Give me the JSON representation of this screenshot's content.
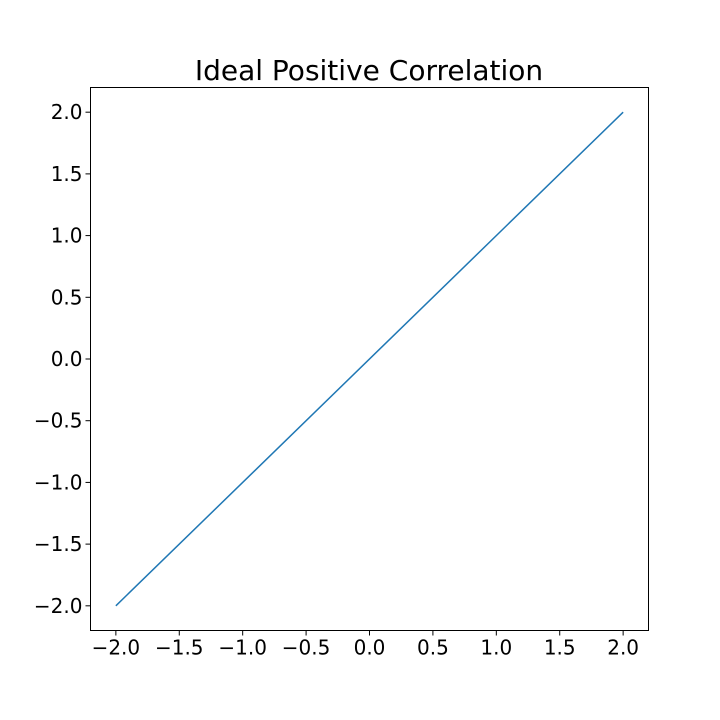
{
  "chart_data": {
    "type": "line",
    "title": "Ideal Positive Correlation",
    "xlabel": "",
    "ylabel": "",
    "xlim": [
      -2.2,
      2.2
    ],
    "ylim": [
      -2.2,
      2.2
    ],
    "x_ticks": [
      -2.0,
      -1.5,
      -1.0,
      -0.5,
      0.0,
      0.5,
      1.0,
      1.5,
      2.0
    ],
    "y_ticks": [
      -2.0,
      -1.5,
      -1.0,
      -0.5,
      0.0,
      0.5,
      1.0,
      1.5,
      2.0
    ],
    "x_tick_labels": [
      "−2.0",
      "−1.5",
      "−1.0",
      "−0.5",
      "0.0",
      "0.5",
      "1.0",
      "1.5",
      "2.0"
    ],
    "y_tick_labels": [
      "−2.0",
      "−1.5",
      "−1.0",
      "−0.5",
      "0.0",
      "0.5",
      "1.0",
      "1.5",
      "2.0"
    ],
    "grid": false,
    "series": [
      {
        "color": "#1f77b4",
        "x": [
          -2.0,
          2.0
        ],
        "y": [
          -2.0,
          2.0
        ]
      }
    ]
  }
}
